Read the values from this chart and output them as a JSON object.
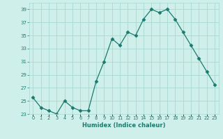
{
  "x": [
    0,
    1,
    2,
    3,
    4,
    5,
    6,
    7,
    8,
    9,
    10,
    11,
    12,
    13,
    14,
    15,
    16,
    17,
    18,
    19,
    20,
    21,
    22,
    23
  ],
  "y": [
    25.5,
    24.0,
    23.5,
    23.0,
    25.0,
    24.0,
    23.5,
    23.5,
    28.0,
    31.0,
    34.5,
    33.5,
    35.5,
    35.0,
    37.5,
    39.0,
    38.5,
    39.0,
    37.5,
    35.5,
    33.5,
    31.5,
    29.5,
    27.5
  ],
  "xlabel": "Humidex (Indice chaleur)",
  "ylim": [
    23,
    40
  ],
  "xlim": [
    -0.5,
    23.5
  ],
  "yticks": [
    23,
    25,
    27,
    29,
    31,
    33,
    35,
    37,
    39
  ],
  "xtick_labels": [
    "0",
    "1",
    "2",
    "3",
    "4",
    "5",
    "6",
    "7",
    "8",
    "9",
    "10",
    "11",
    "12",
    "13",
    "14",
    "15",
    "16",
    "17",
    "18",
    "19",
    "20",
    "21",
    "22",
    "23"
  ],
  "line_color": "#1a7a6e",
  "marker": "D",
  "marker_size": 2.5,
  "bg_color": "#cff0ea",
  "grid_color": "#a8d8d0",
  "font_color": "#1a7a6e"
}
